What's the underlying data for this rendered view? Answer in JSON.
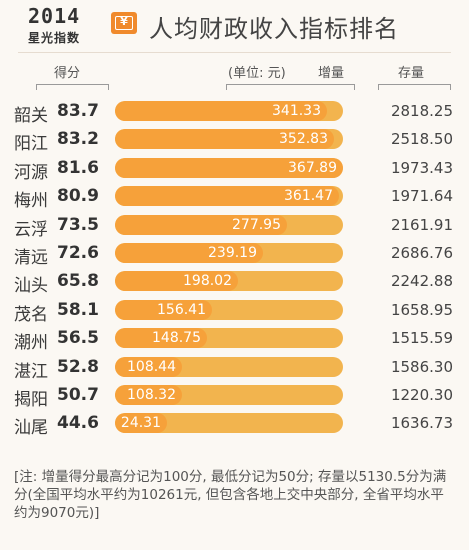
{
  "header": {
    "logo_year": "2014",
    "logo_sub": "星光指数",
    "icon": "yen-banknote-icon",
    "title": "人均财政收入指标排名"
  },
  "columns": {
    "score": "得分",
    "unit": "(单位: 元)",
    "increment": "增量",
    "stock": "存量"
  },
  "rows": [
    {
      "city": "韶关",
      "score": "83.7",
      "increment": "341.33",
      "stock": "2818.25"
    },
    {
      "city": "阳江",
      "score": "83.2",
      "increment": "352.83",
      "stock": "2518.50"
    },
    {
      "city": "河源",
      "score": "81.6",
      "increment": "367.89",
      "stock": "1973.43"
    },
    {
      "city": "梅州",
      "score": "80.9",
      "increment": "361.47",
      "stock": "1971.64"
    },
    {
      "city": "云浮",
      "score": "73.5",
      "increment": "277.95",
      "stock": "2161.91"
    },
    {
      "city": "清远",
      "score": "72.6",
      "increment": "239.19",
      "stock": "2686.76"
    },
    {
      "city": "汕头",
      "score": "65.8",
      "increment": "198.02",
      "stock": "2242.88"
    },
    {
      "city": "茂名",
      "score": "58.1",
      "increment": "156.41",
      "stock": "1658.95"
    },
    {
      "city": "潮州",
      "score": "56.5",
      "increment": "148.75",
      "stock": "1515.59"
    },
    {
      "city": "湛江",
      "score": "52.8",
      "increment": "108.44",
      "stock": "1586.30"
    },
    {
      "city": "揭阳",
      "score": "50.7",
      "increment": "108.32",
      "stock": "1220.30"
    },
    {
      "city": "汕尾",
      "score": "44.6",
      "increment": "24.31",
      "stock": "1636.73"
    }
  ],
  "note": "[注: 增量得分最高分记为100分, 最低分记为50分; 存量以5130.5分为满分(全国平均水平约为10261元, 但包含各地上交中央部分, 全省平均水平约为9070元)]",
  "colors": {
    "bar_fill": "#f6a13a",
    "bar_track": "#f2b44e",
    "icon": "#f08a2c"
  },
  "chart_data": {
    "type": "bar",
    "title": "人均财政收入指标排名",
    "categories": [
      "韶关",
      "阳江",
      "河源",
      "梅州",
      "云浮",
      "清远",
      "汕头",
      "茂名",
      "潮州",
      "湛江",
      "揭阳",
      "汕尾"
    ],
    "series": [
      {
        "name": "得分",
        "values": [
          83.7,
          83.2,
          81.6,
          80.9,
          73.5,
          72.6,
          65.8,
          58.1,
          56.5,
          52.8,
          50.7,
          44.6
        ]
      },
      {
        "name": "增量",
        "values": [
          341.33,
          352.83,
          367.89,
          361.47,
          277.95,
          239.19,
          198.02,
          156.41,
          148.75,
          108.44,
          108.32,
          24.31
        ]
      },
      {
        "name": "存量",
        "values": [
          2818.25,
          2518.5,
          1973.43,
          1971.64,
          2161.91,
          2686.76,
          2242.88,
          1658.95,
          1515.59,
          1586.3,
          1220.3,
          1636.73
        ]
      }
    ],
    "xlabel": "",
    "ylabel": "",
    "unit": "元"
  }
}
